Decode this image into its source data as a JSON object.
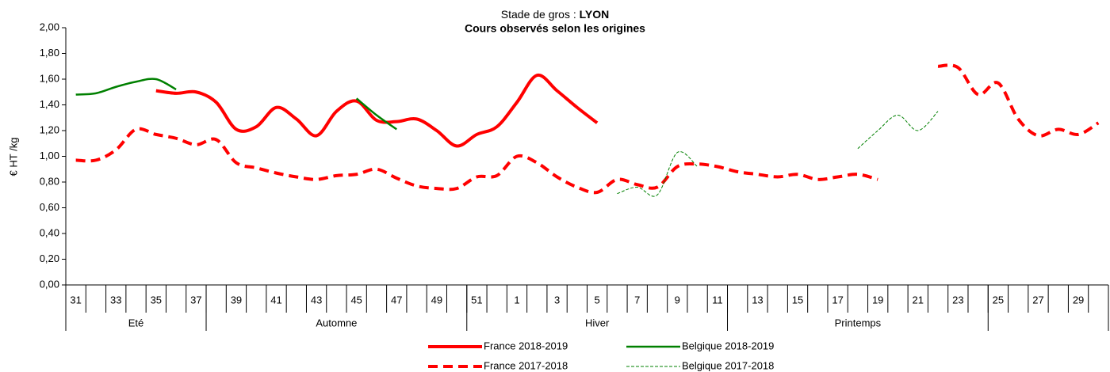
{
  "chart_data": {
    "type": "line",
    "title": [
      "Stade de gros : ",
      "LYON"
    ],
    "subtitle": "Cours observés selon les origines",
    "y_label": "€ HT /kg",
    "categories": [
      "31",
      null,
      "33",
      null,
      "35",
      null,
      "37",
      null,
      "39",
      null,
      "41",
      null,
      "43",
      null,
      "45",
      null,
      "47",
      null,
      "49",
      null,
      "51",
      null,
      "1",
      null,
      "3",
      null,
      "5",
      null,
      "7",
      null,
      "9",
      null,
      "11",
      null,
      "13",
      null,
      "15",
      null,
      "17",
      null,
      "19",
      null,
      "21",
      null,
      "23",
      null,
      "25",
      null,
      "27",
      null,
      "29",
      null
    ],
    "groups": [
      {
        "label": "Eté",
        "count": 7
      },
      {
        "label": "Automne",
        "count": 13
      },
      {
        "label": "Hiver",
        "count": 13
      },
      {
        "label": "Printemps",
        "count": 13
      },
      {
        "label": null,
        "count": 6
      }
    ],
    "ylim": [
      0,
      2
    ],
    "yticks": [
      {
        "value": 0,
        "label": "0,00"
      },
      {
        "value": 0.2,
        "label": "0,20"
      },
      {
        "value": 0.4,
        "label": "0,40"
      },
      {
        "value": 0.6,
        "label": "0,60"
      },
      {
        "value": 0.8,
        "label": "0,80"
      },
      {
        "value": 1,
        "label": "1,00"
      },
      {
        "value": 1.2,
        "label": "1,20"
      },
      {
        "value": 1.4,
        "label": "1,40"
      },
      {
        "value": 1.6,
        "label": "1,60"
      },
      {
        "value": 1.8,
        "label": "1,80"
      },
      {
        "value": 2,
        "label": "2,00"
      }
    ],
    "series": [
      {
        "name": "France 2018-2019",
        "color": "#ff0000",
        "style": "solid",
        "width": 4,
        "values": [
          null,
          null,
          null,
          null,
          1.51,
          1.49,
          1.5,
          1.42,
          1.21,
          1.23,
          1.38,
          1.29,
          1.16,
          1.35,
          1.43,
          1.28,
          1.27,
          1.29,
          1.2,
          1.08,
          1.17,
          1.23,
          1.42,
          1.63,
          1.51,
          1.38,
          1.26,
          null,
          null,
          null,
          null,
          null,
          null,
          null,
          null,
          null,
          null,
          null,
          null,
          null,
          null,
          null,
          null,
          null,
          null,
          null,
          null,
          null,
          null,
          null,
          null,
          null
        ]
      },
      {
        "name": "Belgique 2018-2019",
        "color": "#008000",
        "style": "solid",
        "width": 2.5,
        "values": [
          1.48,
          1.49,
          1.54,
          1.58,
          1.6,
          1.52,
          null,
          null,
          null,
          null,
          null,
          null,
          null,
          null,
          1.45,
          1.32,
          1.21,
          null,
          null,
          null,
          null,
          null,
          null,
          null,
          null,
          null,
          null,
          null,
          null,
          null,
          null,
          null,
          null,
          null,
          null,
          null,
          null,
          null,
          null,
          null,
          null,
          null,
          null,
          null,
          null,
          null,
          null,
          null,
          null,
          null,
          null,
          null
        ]
      },
      {
        "name": "France 2017-2018",
        "color": "#ff0000",
        "style": "dashed",
        "width": 4,
        "values": [
          0.97,
          0.97,
          1.05,
          1.21,
          1.17,
          1.14,
          1.09,
          1.13,
          0.95,
          0.91,
          0.87,
          0.84,
          0.82,
          0.85,
          0.86,
          0.9,
          0.83,
          0.77,
          0.75,
          0.75,
          0.84,
          0.85,
          1.0,
          0.95,
          0.84,
          0.76,
          0.72,
          0.82,
          0.78,
          0.76,
          0.92,
          0.94,
          0.92,
          0.88,
          0.86,
          0.84,
          0.86,
          0.82,
          0.84,
          0.86,
          0.82,
          null,
          null,
          1.7,
          1.69,
          1.48,
          1.57,
          1.29,
          1.16,
          1.21,
          1.17,
          1.26
        ]
      },
      {
        "name": "Belgique 2017-2018",
        "color": "#008000",
        "style": "thin-dashed",
        "width": 1,
        "values": [
          null,
          null,
          null,
          null,
          null,
          null,
          null,
          null,
          null,
          null,
          null,
          null,
          null,
          null,
          null,
          null,
          null,
          null,
          null,
          null,
          null,
          null,
          null,
          null,
          null,
          null,
          null,
          0.71,
          0.76,
          0.7,
          1.03,
          0.92,
          null,
          null,
          null,
          null,
          null,
          null,
          null,
          1.06,
          1.2,
          1.32,
          1.2,
          1.35,
          null,
          null,
          null,
          null,
          null,
          null,
          null,
          null
        ]
      }
    ]
  }
}
